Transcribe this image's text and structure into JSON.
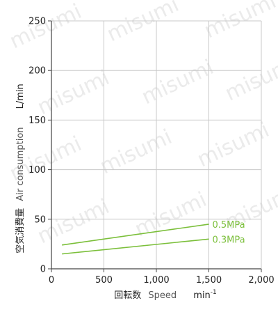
{
  "chart_data": {
    "type": "line",
    "xlabel_main": "回転数",
    "xlabel_en": "Speed",
    "xlabel_unit": "min",
    "xlabel_unit_sup": "-1",
    "ylabel_main": "空気消費量",
    "ylabel_en": "Air consumption",
    "ylabel_unit": "L/min",
    "xlim": [
      0,
      2000
    ],
    "ylim": [
      0,
      250
    ],
    "x_ticks": [
      0,
      500,
      1000,
      1500,
      2000
    ],
    "x_tick_labels": [
      "0",
      "500",
      "1,000",
      "1,500",
      "2,000"
    ],
    "y_ticks": [
      0,
      50,
      100,
      150,
      200,
      250
    ],
    "y_tick_labels": [
      "0",
      "50",
      "100",
      "150",
      "200",
      "250"
    ],
    "grid": true,
    "series": [
      {
        "name": "0.5MPa",
        "x": [
          100,
          1500
        ],
        "y": [
          24,
          45
        ],
        "color": "#7bbf3a"
      },
      {
        "name": "0.3MPa",
        "x": [
          100,
          1500
        ],
        "y": [
          15,
          30
        ],
        "color": "#7bbf3a"
      }
    ],
    "watermark": "misumi"
  }
}
